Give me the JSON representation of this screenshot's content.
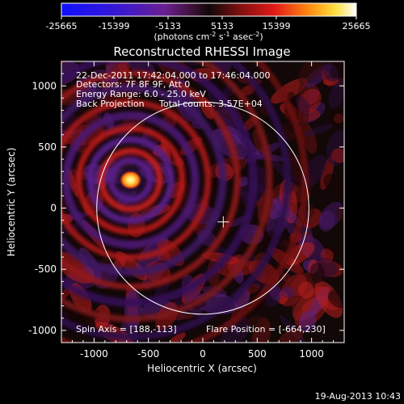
{
  "chart_data": {
    "type": "heatmap",
    "colorbar": {
      "ticks": [
        "-25665",
        "-15399",
        "-5133",
        "5133",
        "15399",
        "25665"
      ],
      "unit_main": "(photons cm",
      "unit_sup1": "-2",
      "unit_mid1": " s",
      "unit_sup2": "-1",
      "unit_mid2": " asec",
      "unit_sup3": "-2",
      "unit_end": ")",
      "min": -25665,
      "max": 25665
    },
    "title": "Reconstructed RHESSI Image",
    "xlabel": "Heliocentric X (arcsec)",
    "ylabel": "Heliocentric Y (arcsec)",
    "xlim": [
      -1300,
      1300
    ],
    "ylim": [
      -1100,
      1200
    ],
    "x_ticks": [
      -1000,
      -500,
      0,
      500,
      1000
    ],
    "y_ticks": [
      -1000,
      -500,
      0,
      500,
      1000
    ],
    "annotations": [
      "22-Dec-2011 17:42:04.000 to 17:46:04.000",
      "Detectors: 7F 8F 9F, Att 0",
      "Energy Range: 6.0 - 25.0 keV",
      "Back Projection",
      "Total counts: 3.57E+04"
    ],
    "spin_axis": "Spin Axis = [188,-113]",
    "flare_position": "Flare Position = [-664,230]",
    "solar_limb_radius": 975,
    "source": {
      "x": -664,
      "y": 230
    },
    "marker": {
      "x": 188,
      "y": -113
    }
  },
  "timestamp": "19-Aug-2013 10:43",
  "colors": {
    "background": "#000000",
    "axes": "#ffffff",
    "ring_red": "#c81e1e",
    "ring_purple": "#5a1e8c",
    "hot": "#ffee88"
  }
}
